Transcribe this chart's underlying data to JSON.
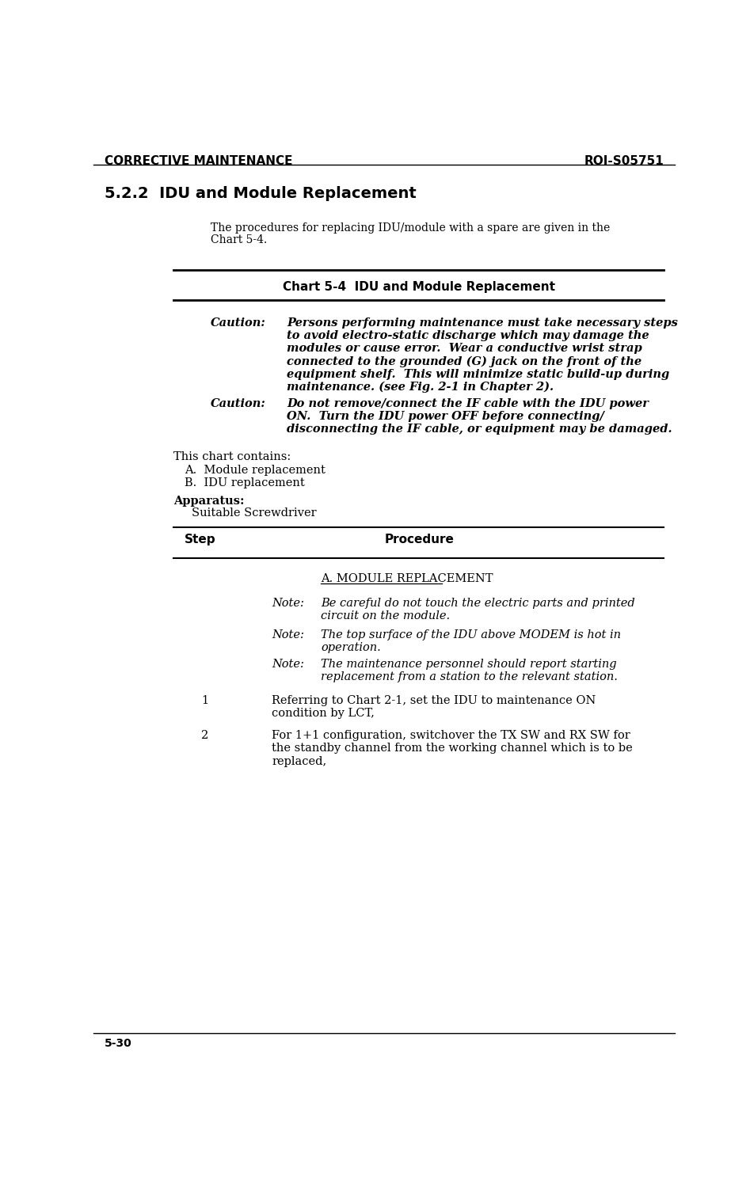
{
  "bg_color": "#ffffff",
  "header_left": "CORRECTIVE MAINTENANCE",
  "header_right": "ROI-S05751",
  "footer_left": "5-30",
  "section_title": "5.2.2  IDU and Module Replacement",
  "intro_text_line1": "The procedures for replacing IDU/module with a spare are given in the",
  "intro_text_line2": "Chart 5-4.",
  "chart_title": "Chart 5-4  IDU and Module Replacement",
  "caution1_label": "Caution:",
  "caution1_lines": [
    "Persons performing maintenance must take necessary steps",
    "to avoid electro-static discharge which may damage the",
    "modules or cause error.  Wear a conductive wrist strap",
    "connected to the grounded (G) jack on the front of the",
    "equipment shelf.  This will minimize static build-up during",
    "maintenance. (see Fig. 2-1 in Chapter 2)."
  ],
  "caution2_label": "Caution:",
  "caution2_lines": [
    "Do not remove/connect the IF cable with the IDU power",
    "ON.  Turn the IDU power OFF before connecting/",
    "disconnecting the IF cable, or equipment may be damaged."
  ],
  "contains_label": "This chart contains:",
  "contains_items": [
    "A.  Module replacement",
    "B.  IDU replacement"
  ],
  "apparatus_label": "Apparatus:",
  "apparatus_item": "Suitable Screwdriver",
  "table_col1": "Step",
  "table_col2": "Procedure",
  "section_a_title": "A. MODULE REPLACEMENT",
  "note1_label": "Note:",
  "note1_lines": [
    "Be careful do not touch the electric parts and printed",
    "circuit on the module."
  ],
  "note2_label": "Note:",
  "note2_lines": [
    "The top surface of the IDU above MODEM is hot in",
    "operation."
  ],
  "note3_label": "Note:",
  "note3_lines": [
    "The maintenance personnel should report starting",
    "replacement from a station to the relevant station."
  ],
  "step1_num": "1",
  "step1_lines": [
    "Referring to Chart 2-1, set the IDU to maintenance ON",
    "condition by LCT,"
  ],
  "step2_num": "2",
  "step2_lines": [
    "For 1+1 configuration, switchover the TX SW and RX SW for",
    "the standby channel from the working channel which is to be",
    "replaced,"
  ]
}
